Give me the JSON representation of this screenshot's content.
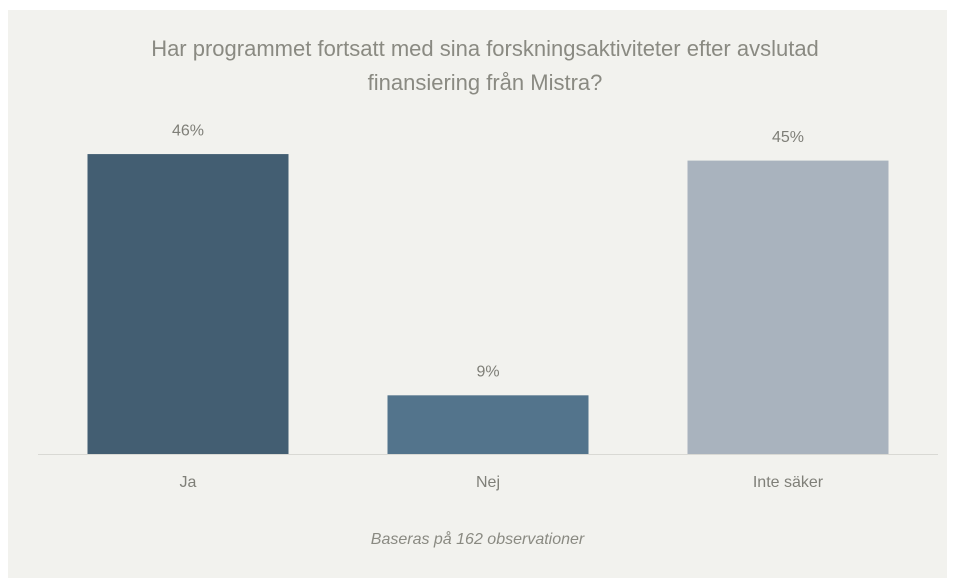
{
  "chart_data": {
    "type": "bar",
    "title": "Har programmet fortsatt med sina forskningsaktiviteter efter avslutad finansiering från Mistra?",
    "categories": [
      "Ja",
      "Nej",
      "Inte säker"
    ],
    "values": [
      46,
      9,
      45
    ],
    "value_labels": [
      "46%",
      "9%",
      "45%"
    ],
    "colors": [
      "#435e72",
      "#53748c",
      "#a9b3be"
    ],
    "footnote": "Baseras på 162 observationer"
  }
}
